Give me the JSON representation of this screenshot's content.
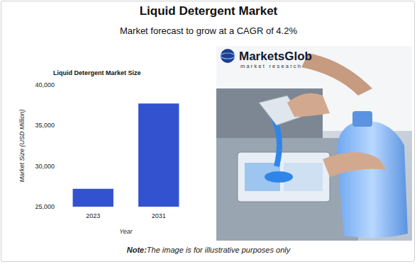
{
  "title": "Liquid Detergent Market",
  "subtitle": "Market forecast to grow at a CAGR of 4.2%",
  "chart_data": {
    "type": "bar",
    "title": "Liquid Detergent Market Size",
    "x_label": "Year",
    "y_label": "Market Size (USD Million)",
    "categories": [
      "2023",
      "2031"
    ],
    "values": [
      27200,
      37700
    ],
    "color": "#3352cf",
    "ylim": [
      25000,
      40000
    ],
    "yticks": [
      {
        "value": 25000,
        "label": "25,000"
      },
      {
        "value": 30000,
        "label": "30,000"
      },
      {
        "value": 35000,
        "label": "35,000"
      },
      {
        "value": 40000,
        "label": "40,000"
      }
    ],
    "grid": false
  },
  "image": {
    "logo": "MarketsGlob",
    "logo_tagline": "market research"
  },
  "note": {
    "label": "Note:",
    "text": "The image is for illustrative purposes only"
  }
}
